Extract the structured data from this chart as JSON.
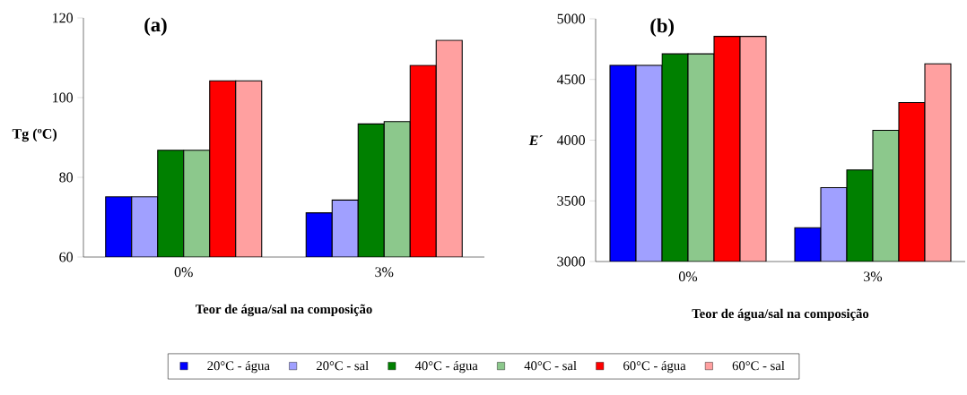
{
  "chart_data": [
    {
      "type": "bar",
      "title": "**(a)**",
      "xlabel": "Teor de água/sal na composição",
      "ylabel": "Tg (ºC)",
      "categories": [
        "0%",
        "3%"
      ],
      "ylim": [
        60,
        120
      ],
      "yticks": [
        60,
        80,
        100,
        120
      ],
      "grid": false,
      "legend": "bottom",
      "series": [
        {
          "name": "20°C - água",
          "color": "#0000ff",
          "values": [
            75.1,
            71.1
          ]
        },
        {
          "name": "20°C - sal",
          "color": "#a0a0ff",
          "values": [
            75.1,
            74.3
          ]
        },
        {
          "name": "40°C - água",
          "color": "#008000",
          "values": [
            86.8,
            93.4
          ]
        },
        {
          "name": "40°C - sal",
          "color": "#8cc88c",
          "values": [
            86.8,
            94.0
          ]
        },
        {
          "name": "60°C - água",
          "color": "#ff0000",
          "values": [
            104.2,
            108.1
          ]
        },
        {
          "name": "60°C - sal",
          "color": "#ffa0a0",
          "values": [
            104.2,
            114.4
          ]
        }
      ]
    },
    {
      "type": "bar",
      "title": "**(b)**",
      "xlabel": "Teor de água/sal na composição",
      "ylabel": "*E*´",
      "categories": [
        "0%",
        "3%"
      ],
      "ylim": [
        3000,
        5000
      ],
      "yticks": [
        3000,
        3500,
        4000,
        4500,
        5000
      ],
      "grid": false,
      "legend": false,
      "series": [
        {
          "color": "#0000ff",
          "values": [
            4617,
            3279
          ]
        },
        {
          "color": "#a0a0ff",
          "values": [
            4617,
            3609
          ]
        },
        {
          "color": "#008000",
          "values": [
            4711,
            3754
          ]
        },
        {
          "color": "#8cc88c",
          "values": [
            4711,
            4081
          ]
        },
        {
          "color": "#ff0000",
          "values": [
            4855,
            4310
          ]
        },
        {
          "color": "#ffa0a0",
          "values": [
            4855,
            4629
          ]
        }
      ]
    }
  ]
}
